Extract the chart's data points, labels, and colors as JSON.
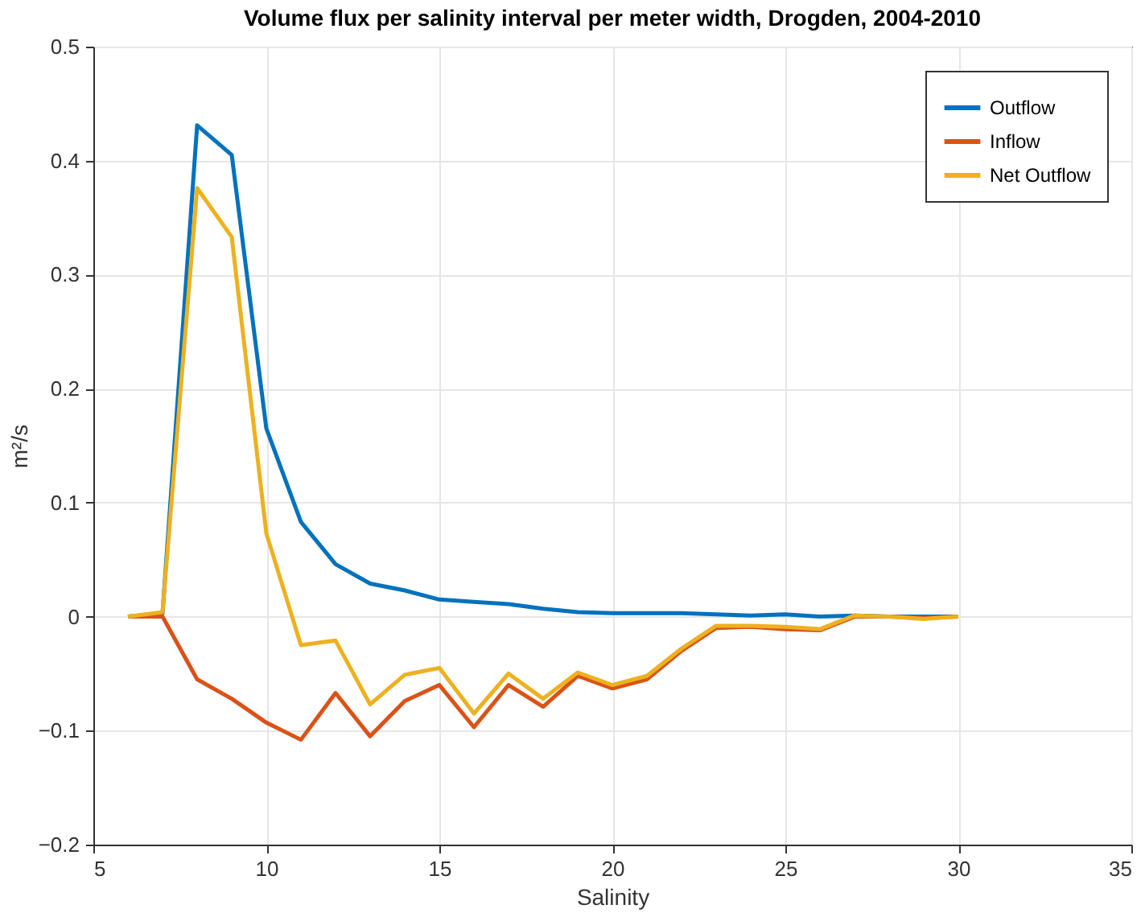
{
  "chart_data": {
    "type": "line",
    "title": "Volume flux per salinity interval per meter width, Drogden, 2004-2010",
    "xlabel": "Salinity",
    "ylabel": "m²/s",
    "x": [
      6,
      7,
      8,
      9,
      10,
      11,
      12,
      13,
      14,
      15,
      16,
      17,
      18,
      19,
      20,
      21,
      22,
      23,
      24,
      25,
      26,
      27,
      28,
      29,
      30
    ],
    "series": [
      {
        "name": "Outflow",
        "color": "#0072bd",
        "values": [
          0,
          0.003,
          0.431,
          0.405,
          0.165,
          0.083,
          0.046,
          0.029,
          0.023,
          0.015,
          0.013,
          0.011,
          0.007,
          0.004,
          0.003,
          0.003,
          0.003,
          0.002,
          0.001,
          0.002,
          0,
          0.001,
          0,
          0,
          0
        ]
      },
      {
        "name": "Inflow",
        "color": "#d95319",
        "values": [
          0,
          0,
          -0.055,
          -0.072,
          -0.093,
          -0.108,
          -0.067,
          -0.105,
          -0.074,
          -0.06,
          -0.097,
          -0.06,
          -0.079,
          -0.052,
          -0.063,
          -0.055,
          -0.03,
          -0.01,
          -0.009,
          -0.011,
          -0.012,
          0,
          0,
          -0.001,
          0
        ]
      },
      {
        "name": "Net Outflow",
        "color": "#edb120",
        "values": [
          0,
          0.004,
          0.376,
          0.333,
          0.073,
          -0.025,
          -0.021,
          -0.077,
          -0.051,
          -0.045,
          -0.085,
          -0.05,
          -0.072,
          -0.049,
          -0.06,
          -0.052,
          -0.028,
          -0.008,
          -0.008,
          -0.009,
          -0.011,
          0.001,
          0,
          -0.002,
          0
        ]
      }
    ],
    "xlim": [
      5,
      35
    ],
    "xticks": [
      5,
      10,
      15,
      20,
      25,
      30,
      35
    ],
    "ylim": [
      -0.2,
      0.5
    ],
    "yticks": [
      -0.2,
      -0.1,
      0,
      0.1,
      0.2,
      0.3,
      0.4,
      0.5
    ],
    "grid": true,
    "legend": "top right",
    "marker": "none",
    "line_style": "solid"
  }
}
